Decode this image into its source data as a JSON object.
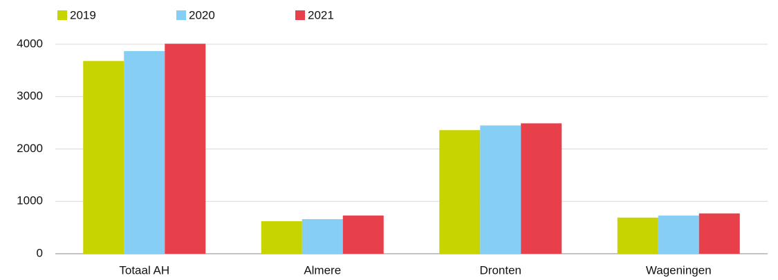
{
  "chart_data": {
    "type": "bar",
    "categories": [
      "Totaal AH",
      "Almere",
      "Dronten",
      "Wageningen"
    ],
    "series": [
      {
        "name": "2019",
        "color": "#c8d400",
        "values": [
          3680,
          620,
          2360,
          690
        ]
      },
      {
        "name": "2020",
        "color": "#87cef5",
        "values": [
          3870,
          660,
          2450,
          730
        ]
      },
      {
        "name": "2021",
        "color": "#e8404a",
        "values": [
          4010,
          730,
          2490,
          770
        ]
      }
    ],
    "ylim": [
      0,
      4000
    ],
    "yticks": [
      0,
      1000,
      2000,
      3000,
      4000
    ],
    "grid": true,
    "legend": "top"
  }
}
